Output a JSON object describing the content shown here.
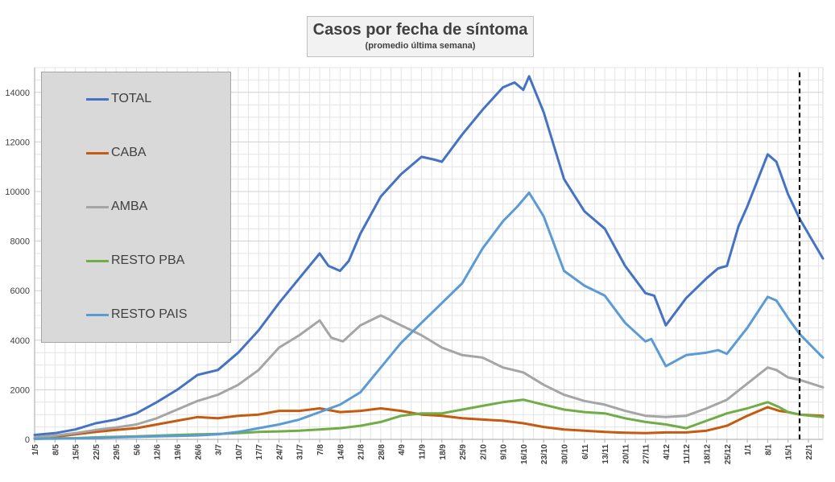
{
  "title": "Casos por fecha de síntoma",
  "subtitle": "(promedio última semana)",
  "chart_data": {
    "type": "line",
    "title": "Casos por fecha de síntoma",
    "subtitle": "(promedio última semana)",
    "xlabel": "",
    "ylabel": "",
    "ylim": [
      0,
      15000
    ],
    "yticks": [
      0,
      2000,
      4000,
      6000,
      8000,
      10000,
      12000,
      14000
    ],
    "grid": true,
    "legend": "left",
    "x_tick_labels": [
      "1/5",
      "8/5",
      "15/5",
      "22/5",
      "29/5",
      "5/6",
      "12/6",
      "19/6",
      "26/6",
      "3/7",
      "10/7",
      "17/7",
      "24/7",
      "31/7",
      "7/8",
      "14/8",
      "21/8",
      "28/8",
      "4/9",
      "11/9",
      "18/9",
      "25/9",
      "2/10",
      "9/10",
      "16/10",
      "23/10",
      "30/10",
      "6/11",
      "13/11",
      "20/11",
      "27/11",
      "4/12",
      "11/12",
      "18/12",
      "25/12",
      "1/1",
      "8/1",
      "15/1",
      "22/1"
    ],
    "x_days": [
      0,
      7,
      14,
      21,
      28,
      35,
      42,
      49,
      56,
      63,
      70,
      77,
      84,
      91,
      98,
      105,
      112,
      119,
      126,
      133,
      140,
      147,
      154,
      161,
      168,
      175,
      182,
      189,
      196,
      203,
      210,
      217,
      224,
      231,
      238,
      245,
      252,
      259,
      266
    ],
    "x_range": [
      0,
      271
    ],
    "vertical_marker_day": 263,
    "series": [
      {
        "name": "TOTAL",
        "color": "#4472c4",
        "points": [
          [
            0,
            180
          ],
          [
            7,
            250
          ],
          [
            14,
            400
          ],
          [
            21,
            650
          ],
          [
            28,
            800
          ],
          [
            35,
            1050
          ],
          [
            42,
            1500
          ],
          [
            49,
            2000
          ],
          [
            56,
            2600
          ],
          [
            63,
            2800
          ],
          [
            70,
            3500
          ],
          [
            77,
            4400
          ],
          [
            84,
            5500
          ],
          [
            91,
            6500
          ],
          [
            98,
            7500
          ],
          [
            101,
            7000
          ],
          [
            105,
            6800
          ],
          [
            108,
            7200
          ],
          [
            112,
            8300
          ],
          [
            119,
            9800
          ],
          [
            126,
            10700
          ],
          [
            133,
            11400
          ],
          [
            137,
            11300
          ],
          [
            140,
            11200
          ],
          [
            147,
            12300
          ],
          [
            154,
            13300
          ],
          [
            161,
            14200
          ],
          [
            165,
            14400
          ],
          [
            168,
            14100
          ],
          [
            170,
            14650
          ],
          [
            175,
            13200
          ],
          [
            182,
            10500
          ],
          [
            189,
            9200
          ],
          [
            196,
            8500
          ],
          [
            203,
            7000
          ],
          [
            210,
            5900
          ],
          [
            213,
            5800
          ],
          [
            217,
            4600
          ],
          [
            224,
            5700
          ],
          [
            231,
            6500
          ],
          [
            235,
            6900
          ],
          [
            238,
            7000
          ],
          [
            242,
            8600
          ],
          [
            245,
            9400
          ],
          [
            252,
            11500
          ],
          [
            255,
            11200
          ],
          [
            259,
            9900
          ],
          [
            263,
            8900
          ],
          [
            271,
            7300
          ]
        ]
      },
      {
        "name": "CABA",
        "color": "#c55a11",
        "points": [
          [
            0,
            60
          ],
          [
            7,
            100
          ],
          [
            14,
            200
          ],
          [
            21,
            300
          ],
          [
            28,
            380
          ],
          [
            35,
            450
          ],
          [
            42,
            600
          ],
          [
            49,
            750
          ],
          [
            56,
            900
          ],
          [
            63,
            850
          ],
          [
            70,
            950
          ],
          [
            77,
            1000
          ],
          [
            84,
            1150
          ],
          [
            91,
            1150
          ],
          [
            98,
            1250
          ],
          [
            105,
            1100
          ],
          [
            112,
            1150
          ],
          [
            119,
            1250
          ],
          [
            126,
            1150
          ],
          [
            133,
            1000
          ],
          [
            140,
            950
          ],
          [
            147,
            850
          ],
          [
            154,
            800
          ],
          [
            161,
            750
          ],
          [
            168,
            650
          ],
          [
            175,
            500
          ],
          [
            182,
            400
          ],
          [
            189,
            350
          ],
          [
            196,
            300
          ],
          [
            203,
            270
          ],
          [
            210,
            250
          ],
          [
            217,
            280
          ],
          [
            224,
            280
          ],
          [
            231,
            350
          ],
          [
            238,
            550
          ],
          [
            245,
            950
          ],
          [
            252,
            1300
          ],
          [
            256,
            1150
          ],
          [
            259,
            1100
          ],
          [
            263,
            1000
          ],
          [
            271,
            950
          ]
        ]
      },
      {
        "name": "AMBA",
        "color": "#a5a5a5",
        "points": [
          [
            0,
            80
          ],
          [
            7,
            150
          ],
          [
            14,
            250
          ],
          [
            21,
            380
          ],
          [
            28,
            480
          ],
          [
            35,
            600
          ],
          [
            42,
            850
          ],
          [
            49,
            1200
          ],
          [
            56,
            1550
          ],
          [
            63,
            1800
          ],
          [
            70,
            2200
          ],
          [
            77,
            2800
          ],
          [
            84,
            3700
          ],
          [
            91,
            4200
          ],
          [
            98,
            4800
          ],
          [
            102,
            4100
          ],
          [
            106,
            3950
          ],
          [
            112,
            4600
          ],
          [
            119,
            5000
          ],
          [
            126,
            4600
          ],
          [
            133,
            4200
          ],
          [
            140,
            3700
          ],
          [
            147,
            3400
          ],
          [
            154,
            3300
          ],
          [
            161,
            2900
          ],
          [
            168,
            2700
          ],
          [
            175,
            2200
          ],
          [
            182,
            1800
          ],
          [
            189,
            1550
          ],
          [
            196,
            1400
          ],
          [
            203,
            1150
          ],
          [
            210,
            950
          ],
          [
            217,
            900
          ],
          [
            224,
            950
          ],
          [
            231,
            1250
          ],
          [
            238,
            1600
          ],
          [
            245,
            2250
          ],
          [
            252,
            2900
          ],
          [
            255,
            2800
          ],
          [
            259,
            2500
          ],
          [
            263,
            2400
          ],
          [
            271,
            2100
          ]
        ]
      },
      {
        "name": "RESTO PBA",
        "color": "#70ad47",
        "points": [
          [
            0,
            20
          ],
          [
            7,
            40
          ],
          [
            14,
            50
          ],
          [
            21,
            80
          ],
          [
            28,
            100
          ],
          [
            35,
            120
          ],
          [
            42,
            150
          ],
          [
            49,
            180
          ],
          [
            56,
            200
          ],
          [
            63,
            220
          ],
          [
            70,
            250
          ],
          [
            77,
            300
          ],
          [
            84,
            320
          ],
          [
            91,
            350
          ],
          [
            98,
            400
          ],
          [
            105,
            450
          ],
          [
            112,
            550
          ],
          [
            119,
            700
          ],
          [
            126,
            950
          ],
          [
            133,
            1050
          ],
          [
            140,
            1050
          ],
          [
            147,
            1200
          ],
          [
            154,
            1350
          ],
          [
            161,
            1500
          ],
          [
            168,
            1600
          ],
          [
            175,
            1400
          ],
          [
            182,
            1200
          ],
          [
            189,
            1100
          ],
          [
            196,
            1050
          ],
          [
            203,
            850
          ],
          [
            210,
            700
          ],
          [
            217,
            600
          ],
          [
            224,
            450
          ],
          [
            231,
            750
          ],
          [
            238,
            1050
          ],
          [
            245,
            1250
          ],
          [
            252,
            1500
          ],
          [
            256,
            1300
          ],
          [
            259,
            1100
          ],
          [
            263,
            1000
          ],
          [
            271,
            900
          ]
        ]
      },
      {
        "name": "RESTO PAIS",
        "color": "#5b9bd5",
        "points": [
          [
            0,
            20
          ],
          [
            7,
            30
          ],
          [
            14,
            40
          ],
          [
            21,
            60
          ],
          [
            28,
            80
          ],
          [
            35,
            100
          ],
          [
            42,
            120
          ],
          [
            49,
            140
          ],
          [
            56,
            160
          ],
          [
            63,
            200
          ],
          [
            70,
            300
          ],
          [
            77,
            450
          ],
          [
            84,
            600
          ],
          [
            91,
            800
          ],
          [
            98,
            1100
          ],
          [
            105,
            1400
          ],
          [
            112,
            1900
          ],
          [
            119,
            2900
          ],
          [
            126,
            3900
          ],
          [
            133,
            4700
          ],
          [
            140,
            5500
          ],
          [
            147,
            6300
          ],
          [
            154,
            7700
          ],
          [
            161,
            8800
          ],
          [
            166,
            9400
          ],
          [
            170,
            9950
          ],
          [
            175,
            9000
          ],
          [
            182,
            6800
          ],
          [
            189,
            6200
          ],
          [
            196,
            5800
          ],
          [
            203,
            4700
          ],
          [
            210,
            3950
          ],
          [
            212,
            4050
          ],
          [
            217,
            2950
          ],
          [
            224,
            3400
          ],
          [
            231,
            3500
          ],
          [
            235,
            3600
          ],
          [
            238,
            3450
          ],
          [
            245,
            4500
          ],
          [
            252,
            5750
          ],
          [
            255,
            5600
          ],
          [
            259,
            4900
          ],
          [
            263,
            4250
          ],
          [
            271,
            3300
          ]
        ]
      }
    ]
  }
}
